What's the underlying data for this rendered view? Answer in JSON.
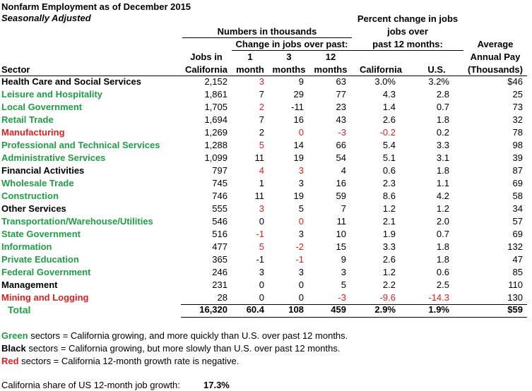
{
  "title": "Nonfarm Employment as of December 2015",
  "subtitle": "Seasonally Adjusted",
  "headers": {
    "numbers_group": "Numbers in thousands",
    "change_group": "Change in jobs over past:",
    "pct_group_line1": "Percent change in jobs",
    "pct_group_line2": "jobs over",
    "pct_group_line3": "past 12 months:",
    "sector": "Sector",
    "jobs_ca_1": "Jobs in",
    "jobs_ca_2": "California",
    "m1_1": "1",
    "m1_2": "month",
    "m3_1": "3",
    "m3_2": "months",
    "m12_1": "12",
    "m12_2": "months",
    "pct_ca": "California",
    "pct_us": "U.S.",
    "pay_1": "Average",
    "pay_2": "Annual Pay",
    "pay_3": "(Thousands)"
  },
  "colors": {
    "green": "#1f9e45",
    "red": "#e02020",
    "black": "#000000"
  },
  "rows": [
    {
      "sector": "Health Care and Social Services",
      "color": "black",
      "jobs": "2,152",
      "m1": "3",
      "m1_color": "red",
      "m3": "9",
      "m3_color": "black",
      "m12": "63",
      "m12_color": "black",
      "ca": "3.0%",
      "ca_color": "black",
      "us": "3.2%",
      "us_color": "black",
      "pay": "$46"
    },
    {
      "sector": "Leisure and Hospitality",
      "color": "green",
      "jobs": "1,861",
      "m1": "7",
      "m1_color": "black",
      "m3": "29",
      "m3_color": "black",
      "m12": "77",
      "m12_color": "black",
      "ca": "4.3",
      "ca_color": "black",
      "us": "2.8",
      "us_color": "black",
      "pay": "25"
    },
    {
      "sector": "Local Government",
      "color": "green",
      "jobs": "1,705",
      "m1": "2",
      "m1_color": "red",
      "m3": "-11",
      "m3_color": "black",
      "m12": "23",
      "m12_color": "black",
      "ca": "1.4",
      "ca_color": "black",
      "us": "0.7",
      "us_color": "black",
      "pay": "73"
    },
    {
      "sector": "Retail Trade",
      "color": "green",
      "jobs": "1,694",
      "m1": "7",
      "m1_color": "black",
      "m3": "16",
      "m3_color": "black",
      "m12": "43",
      "m12_color": "black",
      "ca": "2.6",
      "ca_color": "black",
      "us": "1.8",
      "us_color": "black",
      "pay": "32"
    },
    {
      "sector": "Manufacturing",
      "color": "red",
      "jobs": "1,269",
      "m1": "2",
      "m1_color": "black",
      "m3": "0",
      "m3_color": "red",
      "m12": "-3",
      "m12_color": "red",
      "ca": "-0.2",
      "ca_color": "red",
      "us": "0.2",
      "us_color": "black",
      "pay": "78"
    },
    {
      "sector": "Professional and Technical Services",
      "color": "green",
      "jobs": "1,288",
      "m1": "5",
      "m1_color": "red",
      "m3": "14",
      "m3_color": "black",
      "m12": "66",
      "m12_color": "black",
      "ca": "5.4",
      "ca_color": "black",
      "us": "3.3",
      "us_color": "black",
      "pay": "98"
    },
    {
      "sector": "Administrative Services",
      "color": "green",
      "jobs": "1,099",
      "m1": "11",
      "m1_color": "black",
      "m3": "19",
      "m3_color": "black",
      "m12": "54",
      "m12_color": "black",
      "ca": "5.1",
      "ca_color": "black",
      "us": "3.1",
      "us_color": "black",
      "pay": "39"
    },
    {
      "sector": "Financial Activities",
      "color": "black",
      "jobs": "797",
      "m1": "4",
      "m1_color": "red",
      "m3": "3",
      "m3_color": "red",
      "m12": "4",
      "m12_color": "black",
      "ca": "0.6",
      "ca_color": "black",
      "us": "1.8",
      "us_color": "black",
      "pay": "87"
    },
    {
      "sector": "Wholesale Trade",
      "color": "green",
      "jobs": "745",
      "m1": "1",
      "m1_color": "black",
      "m3": "3",
      "m3_color": "black",
      "m12": "16",
      "m12_color": "black",
      "ca": "2.3",
      "ca_color": "black",
      "us": "1.1",
      "us_color": "black",
      "pay": "69"
    },
    {
      "sector": "Construction",
      "color": "green",
      "jobs": "746",
      "m1": "11",
      "m1_color": "black",
      "m3": "19",
      "m3_color": "black",
      "m12": "59",
      "m12_color": "black",
      "ca": "8.6",
      "ca_color": "black",
      "us": "4.2",
      "us_color": "black",
      "pay": "58"
    },
    {
      "sector": "Other Services",
      "color": "black",
      "jobs": "555",
      "m1": "3",
      "m1_color": "red",
      "m3": "5",
      "m3_color": "black",
      "m12": "7",
      "m12_color": "black",
      "ca": "1.2",
      "ca_color": "black",
      "us": "1.2",
      "us_color": "black",
      "pay": "34"
    },
    {
      "sector": "Transportation/Warehouse/Utilities",
      "color": "green",
      "jobs": "546",
      "m1": "0",
      "m1_color": "black",
      "m3": "0",
      "m3_color": "red",
      "m12": "11",
      "m12_color": "black",
      "ca": "2.1",
      "ca_color": "black",
      "us": "2.0",
      "us_color": "black",
      "pay": "57"
    },
    {
      "sector": "State Government",
      "color": "green",
      "jobs": "516",
      "m1": "-1",
      "m1_color": "red",
      "m3": "3",
      "m3_color": "black",
      "m12": "10",
      "m12_color": "black",
      "ca": "1.9",
      "ca_color": "black",
      "us": "0.7",
      "us_color": "black",
      "pay": "69"
    },
    {
      "sector": "Information",
      "color": "green",
      "jobs": "477",
      "m1": "5",
      "m1_color": "red",
      "m3": "-2",
      "m3_color": "red",
      "m12": "15",
      "m12_color": "black",
      "ca": "3.3",
      "ca_color": "black",
      "us": "1.8",
      "us_color": "black",
      "pay": "132"
    },
    {
      "sector": "Private Education",
      "color": "green",
      "jobs": "365",
      "m1": "-1",
      "m1_color": "black",
      "m3": "-1",
      "m3_color": "red",
      "m12": "9",
      "m12_color": "black",
      "ca": "2.6",
      "ca_color": "black",
      "us": "1.8",
      "us_color": "black",
      "pay": "47"
    },
    {
      "sector": "Federal Government",
      "color": "green",
      "jobs": "246",
      "m1": "3",
      "m1_color": "black",
      "m3": "3",
      "m3_color": "black",
      "m12": "3",
      "m12_color": "black",
      "ca": "1.2",
      "ca_color": "black",
      "us": "0.6",
      "us_color": "black",
      "pay": "85"
    },
    {
      "sector": "Management",
      "color": "black",
      "jobs": "231",
      "m1": "0",
      "m1_color": "black",
      "m3": "0",
      "m3_color": "black",
      "m12": "5",
      "m12_color": "black",
      "ca": "2.2",
      "ca_color": "black",
      "us": "2.5",
      "us_color": "black",
      "pay": "110"
    },
    {
      "sector": "Mining and Logging",
      "color": "red",
      "jobs": "28",
      "m1": "0",
      "m1_color": "black",
      "m3": "0",
      "m3_color": "black",
      "m12": "-3",
      "m12_color": "red",
      "ca": "-9.6",
      "ca_color": "red",
      "us": "-14.3",
      "us_color": "red",
      "pay": "130"
    }
  ],
  "total": {
    "sector": "Total",
    "jobs": "16,320",
    "m1": "60.4",
    "m3": "108",
    "m12": "459",
    "ca": "2.9%",
    "us": "1.9%",
    "pay": "$59"
  },
  "legend": {
    "green_word": "Green",
    "green_text": " sectors = California growing, and more quickly than U.S. over past 12 months.",
    "black_word": "Black",
    "black_text": " sectors = California growing, but more slowly than U.S. over past 12 months.",
    "red_word": "Red",
    "red_text": " sectors = California 12-month growth rate is negative."
  },
  "share": {
    "label": "California share of US 12-month job growth:",
    "value": "17.3%"
  }
}
